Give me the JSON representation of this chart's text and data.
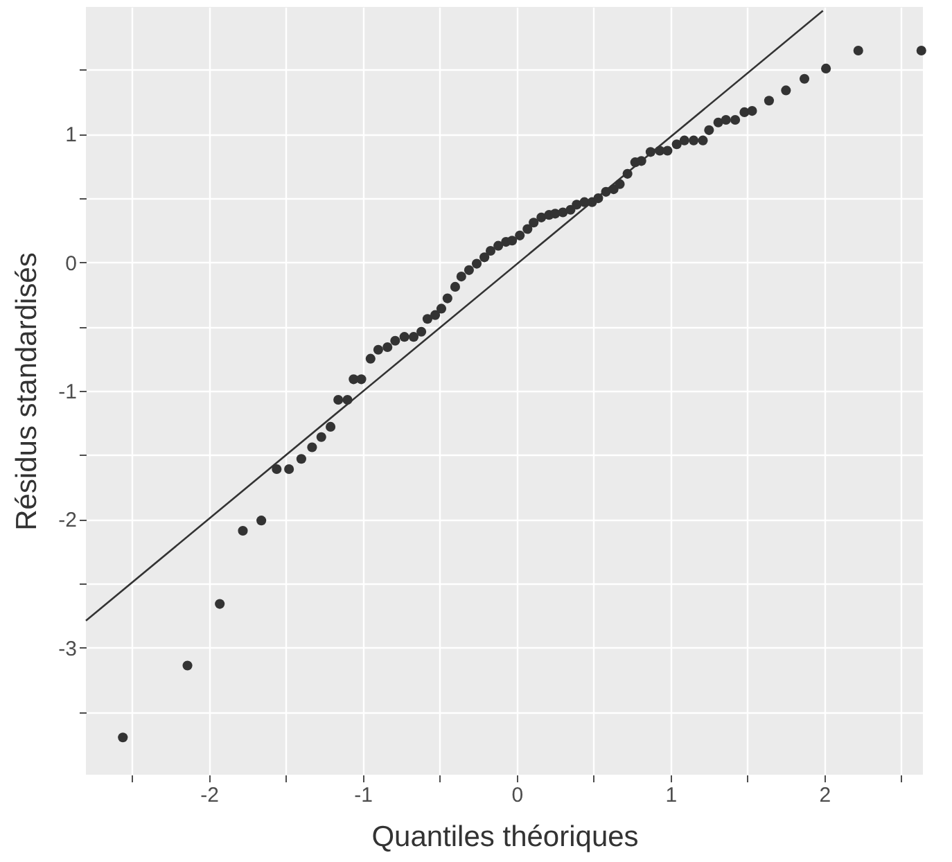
{
  "chart_data": {
    "type": "scatter",
    "xlabel": "Quantiles théoriques",
    "ylabel": "Résidus standardisés",
    "xlim": [
      -2.8,
      2.64
    ],
    "ylim": [
      -3.99,
      1.99
    ],
    "xticks": [
      {
        "value": -2.5,
        "label": null
      },
      -2,
      {
        "value": -1.5,
        "label": null
      },
      -1,
      {
        "value": -0.5,
        "label": null
      },
      0,
      {
        "value": 0.5,
        "label": null
      },
      1,
      {
        "value": 1.5,
        "label": null
      },
      2,
      {
        "value": 2.5,
        "label": null
      }
    ],
    "yticks": [
      {
        "value": -3.5,
        "label": null
      },
      -3,
      {
        "value": -2.5,
        "label": null
      },
      -2,
      {
        "value": -1.5,
        "label": null
      },
      -1,
      {
        "value": -0.5,
        "label": null
      },
      0,
      {
        "value": 0.5,
        "label": null
      },
      1,
      {
        "value": 1.5,
        "label": null
      }
    ],
    "grid": true,
    "marker": "circle",
    "series": [
      {
        "color": "#333333",
        "x": [
          -2.56,
          -2.14,
          -1.93,
          -1.78,
          -1.66,
          -1.56,
          -1.48,
          -1.4,
          -1.33,
          -1.27,
          -1.21,
          -1.16,
          -1.1,
          -1.06,
          -1.01,
          -0.95,
          -0.9,
          -0.84,
          -0.79,
          -0.73,
          -0.67,
          -0.62,
          -0.58,
          -0.53,
          -0.49,
          -0.45,
          -0.4,
          -0.36,
          -0.31,
          -0.26,
          -0.21,
          -0.17,
          -0.12,
          -0.07,
          -0.03,
          0.02,
          0.07,
          0.11,
          0.16,
          0.21,
          0.25,
          0.3,
          0.35,
          0.39,
          0.44,
          0.49,
          0.53,
          0.58,
          0.63,
          0.67,
          0.72,
          0.77,
          0.81,
          0.87,
          0.93,
          0.98,
          1.04,
          1.09,
          1.15,
          1.21,
          1.25,
          1.31,
          1.36,
          1.42,
          1.48,
          1.53,
          1.64,
          1.75,
          1.87,
          2.01,
          2.22,
          2.63
        ],
        "values": [
          -3.7,
          -3.14,
          -2.66,
          -2.09,
          -2.01,
          -1.61,
          -1.61,
          -1.53,
          -1.44,
          -1.36,
          -1.28,
          -1.07,
          -1.07,
          -0.91,
          -0.91,
          -0.75,
          -0.68,
          -0.66,
          -0.61,
          -0.58,
          -0.58,
          -0.54,
          -0.44,
          -0.41,
          -0.36,
          -0.28,
          -0.19,
          -0.11,
          -0.06,
          -0.01,
          0.04,
          0.09,
          0.13,
          0.16,
          0.17,
          0.21,
          0.26,
          0.31,
          0.35,
          0.37,
          0.38,
          0.39,
          0.41,
          0.45,
          0.47,
          0.47,
          0.5,
          0.55,
          0.57,
          0.61,
          0.69,
          0.78,
          0.79,
          0.86,
          0.87,
          0.87,
          0.92,
          0.95,
          0.95,
          0.95,
          1.03,
          1.09,
          1.11,
          1.11,
          1.17,
          1.18,
          1.26,
          1.34,
          1.43,
          1.51,
          1.65,
          1.65
        ]
      },
      {
        "type": "line",
        "marker": "none",
        "color": "#333333",
        "x": [
          -2.8,
          1.99
        ],
        "values": [
          -2.79,
          1.96
        ]
      }
    ]
  }
}
